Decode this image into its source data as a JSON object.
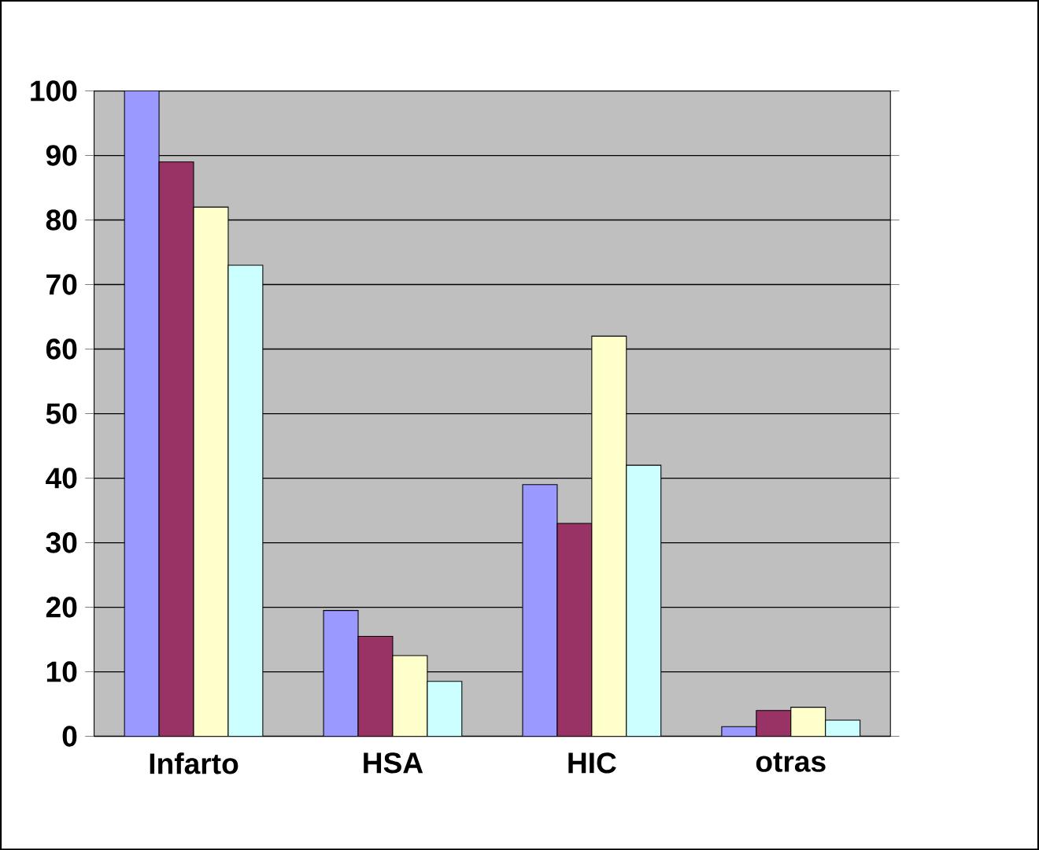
{
  "chart_data": {
    "type": "bar",
    "categories": [
      "Infarto",
      "HSA",
      "HIC",
      "otras"
    ],
    "series": [
      {
        "color": "#9999ff",
        "values": [
          100,
          19.5,
          39,
          1.5
        ]
      },
      {
        "color": "#993366",
        "values": [
          89,
          15.5,
          33,
          4
        ]
      },
      {
        "color": "#ffffcc",
        "values": [
          82,
          12.5,
          62,
          4.5
        ]
      },
      {
        "color": "#ccffff",
        "values": [
          73,
          8.5,
          42,
          2.5
        ]
      }
    ],
    "ylim": [
      0,
      100
    ],
    "yticks": [
      0,
      10,
      20,
      30,
      40,
      50,
      60,
      70,
      80,
      90,
      100
    ],
    "grid": "y"
  }
}
